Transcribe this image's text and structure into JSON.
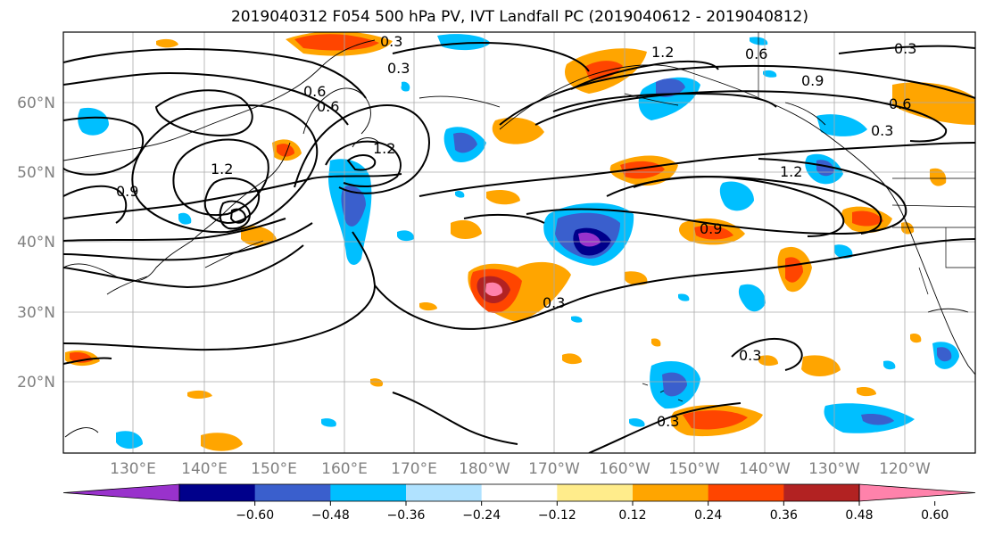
{
  "title": "2019040312 F054 500 hPa PV, IVT Landfall PC (2019040612 - 2019040812)",
  "map": {
    "lat_labels": [
      "60°N",
      "50°N",
      "40°N",
      "30°N",
      "20°N"
    ],
    "lon_labels": [
      "130°E",
      "140°E",
      "150°E",
      "160°E",
      "170°E",
      "180°W",
      "170°W",
      "160°W",
      "150°W",
      "140°W",
      "130°W",
      "120°W"
    ],
    "contour_labels": [
      "0.3",
      "0.3",
      "0.6",
      "1.2",
      "1.2",
      "0.9",
      "0.6",
      "0.6",
      "0.3",
      "1.2",
      "0.9",
      "0.3",
      "0.3",
      "0.3",
      "0.9",
      "1.2",
      "0.6",
      "0.3"
    ]
  },
  "colorbar": {
    "colors": [
      "#9932cc",
      "#00008b",
      "#3a5fcd",
      "#00bfff",
      "#b0e2ff",
      "#ffffff",
      "#ffec8b",
      "#ffa500",
      "#ff4500",
      "#b22222",
      "#ff82ab"
    ],
    "tick_labels": [
      "−0.60",
      "−0.48",
      "−0.36",
      "−0.24",
      "−0.12",
      "0.12",
      "0.24",
      "0.36",
      "0.48",
      "0.60"
    ]
  }
}
